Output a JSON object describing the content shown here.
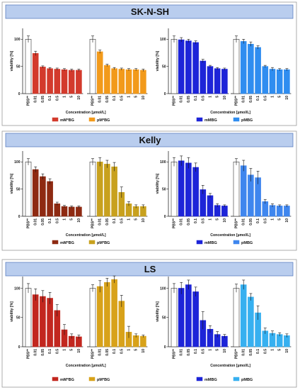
{
  "chart_data": {
    "type": "bar",
    "categories": [
      "PBS**",
      "0.01",
      "0.05",
      "0.1",
      "0.5",
      "1",
      "5",
      "10"
    ],
    "ylabel": "viability [%]",
    "xlabel": "Concentration [µmol/L]",
    "ylim": [
      0,
      120
    ],
    "yticks": [
      0,
      50,
      100
    ],
    "panels": [
      {
        "title": "SK-N-SH",
        "left_series": [
          {
            "name": "mM*BG",
            "color": "#d33a2c",
            "values": [
              100,
              74,
              49,
              46,
              45,
              44,
              43,
              43
            ],
            "errors": [
              6,
              4,
              2,
              2,
              2,
              2,
              2,
              2
            ]
          },
          {
            "name": "pM*BG",
            "color": "#f29a1b",
            "values": [
              100,
              77,
              52,
              46,
              45,
              44,
              44,
              43
            ],
            "errors": [
              6,
              3,
              2,
              2,
              2,
              2,
              2,
              2
            ]
          }
        ],
        "right_series": [
          {
            "name": "mMBG",
            "color": "#1d24d8",
            "values": [
              100,
              99,
              97,
              94,
              60,
              50,
              46,
              45
            ],
            "errors": [
              6,
              4,
              3,
              3,
              3,
              2,
              2,
              2
            ]
          },
          {
            "name": "pMBG",
            "color": "#2f8df0",
            "values": [
              100,
              96,
              91,
              85,
              50,
              45,
              44,
              44
            ],
            "errors": [
              6,
              4,
              4,
              3,
              2,
              3,
              2,
              2
            ]
          }
        ]
      },
      {
        "title": "Kelly",
        "left_series": [
          {
            "name": "mM*BG",
            "color": "#8e2a12",
            "values": [
              100,
              86,
              73,
              64,
              23,
              18,
              17,
              17
            ],
            "errors": [
              6,
              5,
              5,
              5,
              3,
              2,
              2,
              2
            ]
          },
          {
            "name": "pM*BG",
            "color": "#c8a11e",
            "values": [
              100,
              100,
              96,
              91,
              44,
              23,
              18,
              18
            ],
            "errors": [
              6,
              8,
              7,
              8,
              10,
              4,
              3,
              3
            ]
          }
        ],
        "right_series": [
          {
            "name": "mMBG",
            "color": "#1d24d8",
            "values": [
              100,
              102,
              98,
              90,
              49,
              38,
              20,
              19
            ],
            "errors": [
              8,
              9,
              10,
              8,
              8,
              4,
              3,
              2
            ]
          },
          {
            "name": "pMBG",
            "color": "#3f86ee",
            "values": [
              100,
              93,
              76,
              71,
              27,
              20,
              19,
              19
            ],
            "errors": [
              6,
              10,
              12,
              12,
              4,
              3,
              2,
              2
            ]
          }
        ]
      },
      {
        "title": "LS",
        "left_series": [
          {
            "name": "mM*BG",
            "color": "#c2271f",
            "values": [
              100,
              89,
              86,
              83,
              62,
              29,
              18,
              17
            ],
            "errors": [
              8,
              10,
              10,
              10,
              10,
              9,
              4,
              3
            ]
          },
          {
            "name": "pM*BG",
            "color": "#d8a21a",
            "values": [
              100,
              103,
              110,
              115,
              78,
              25,
              19,
              18
            ],
            "errors": [
              6,
              10,
              7,
              6,
              10,
              10,
              3,
              2
            ]
          }
        ],
        "right_series": [
          {
            "name": "mMBG",
            "color": "#1d24d8",
            "values": [
              100,
              100,
              106,
              94,
              45,
              30,
              21,
              18
            ],
            "errors": [
              8,
              10,
              8,
              8,
              15,
              6,
              5,
              3
            ]
          },
          {
            "name": "pMBG",
            "color": "#37b0f0",
            "values": [
              100,
              106,
              85,
              58,
              27,
              23,
              21,
              19
            ],
            "errors": [
              7,
              8,
              6,
              12,
              5,
              4,
              3,
              3
            ]
          }
        ]
      }
    ]
  }
}
